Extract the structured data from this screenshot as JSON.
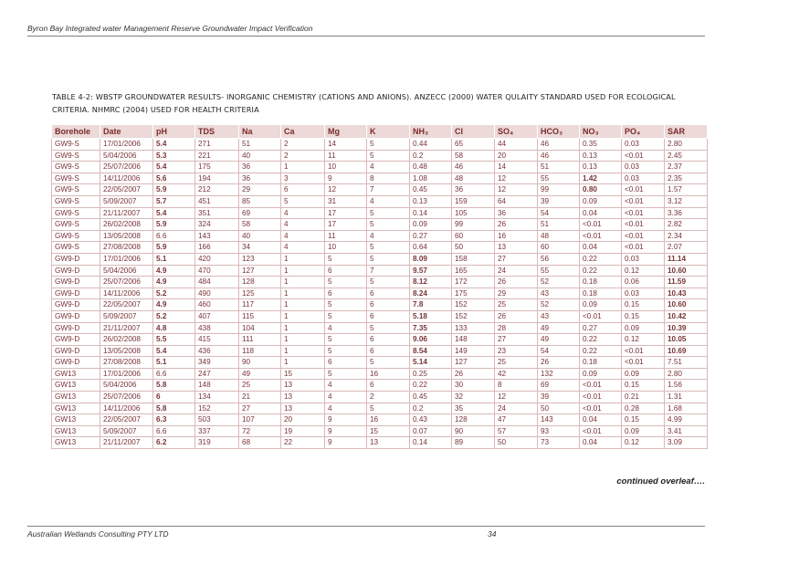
{
  "header": {
    "text": "Byron Bay Integrated water Management Reserve Groundwater Impact Verification"
  },
  "caption": {
    "text": "TABLE 4-2: WBSTP GROUNDWATER RESULTS- INORGANIC CHEMISTRY (CATIONS AND ANIONS).  ANZECC (2000) WATER QULAITY STANDARD USED FOR ECOLOGICAL CRITERIA.  NHMRC (2004) USED FOR HEALTH CRITERIA"
  },
  "table": {
    "headers": [
      "Borehole",
      "Date",
      "pH",
      "TDS",
      "Na",
      "Ca",
      "Mg",
      "K",
      "NH₃",
      "Cl",
      "SO₄",
      "HCO₃",
      "NO₃",
      "PO₄",
      "SAR"
    ],
    "rows": [
      [
        "GW9-S",
        "17/01/2006",
        "5.4",
        "271",
        "51",
        "2",
        "14",
        "5",
        "0.44",
        "65",
        "44",
        "46",
        "0.35",
        "0.03",
        "2.80"
      ],
      [
        "GW9-S",
        "5/04/2006",
        "5.3",
        "221",
        "40",
        "2",
        "11",
        "5",
        "0.2",
        "58",
        "20",
        "46",
        "0.13",
        "<0.01",
        "2.45"
      ],
      [
        "GW9-S",
        "25/07/2006",
        "5.4",
        "175",
        "36",
        "1",
        "10",
        "4",
        "0.48",
        "46",
        "14",
        "51",
        "0.13",
        "0.03",
        "2.37"
      ],
      [
        "GW9-S",
        "14/11/2006",
        "5.6",
        "194",
        "36",
        "3",
        "9",
        "8",
        "1.08",
        "48",
        "12",
        "55",
        "1.42",
        "0.03",
        "2.35"
      ],
      [
        "GW9-S",
        "22/05/2007",
        "5.9",
        "212",
        "29",
        "6",
        "12",
        "7",
        "0.45",
        "36",
        "12",
        "99",
        "0.80",
        "<0.01",
        "1.57"
      ],
      [
        "GW9-S",
        "5/09/2007",
        "5.7",
        "451",
        "85",
        "5",
        "31",
        "4",
        "0.13",
        "159",
        "64",
        "39",
        "0.09",
        "<0.01",
        "3.12"
      ],
      [
        "GW9-S",
        "21/11/2007",
        "5.4",
        "351",
        "69",
        "4",
        "17",
        "5",
        "0.14",
        "105",
        "36",
        "54",
        "0.04",
        "<0.01",
        "3.36"
      ],
      [
        "GW9-S",
        "26/02/2008",
        "5.9",
        "324",
        "58",
        "4",
        "17",
        "5",
        "0.09",
        "99",
        "26",
        "51",
        "<0.01",
        "<0.01",
        "2.82"
      ],
      [
        "GW9-S",
        "13/05/2008",
        "6.6",
        "143",
        "40",
        "4",
        "11",
        "4",
        "0.27",
        "60",
        "16",
        "48",
        "<0.01",
        "<0.01",
        "2.34"
      ],
      [
        "GW9-S",
        "27/08/2008",
        "5.9",
        "166",
        "34",
        "4",
        "10",
        "5",
        "0.64",
        "50",
        "13",
        "60",
        "0.04",
        "<0.01",
        "2.07"
      ],
      [
        "GW9-D",
        "17/01/2006",
        "5.1",
        "420",
        "123",
        "1",
        "5",
        "5",
        "8.09",
        "158",
        "27",
        "56",
        "0.22",
        "0.03",
        "11.14"
      ],
      [
        "GW9-D",
        "5/04/2006",
        "4.9",
        "470",
        "127",
        "1",
        "6",
        "7",
        "9.57",
        "165",
        "24",
        "55",
        "0.22",
        "0.12",
        "10.60"
      ],
      [
        "GW9-D",
        "25/07/2006",
        "4.9",
        "484",
        "128",
        "1",
        "5",
        "5",
        "8.12",
        "172",
        "26",
        "52",
        "0.18",
        "0.06",
        "11.59"
      ],
      [
        "GW9-D",
        "14/11/2006",
        "5.2",
        "490",
        "125",
        "1",
        "6",
        "6",
        "8.24",
        "175",
        "29",
        "43",
        "0.18",
        "0.03",
        "10.43"
      ],
      [
        "GW9-D",
        "22/05/2007",
        "4.9",
        "460",
        "117",
        "1",
        "5",
        "6",
        "7.8",
        "152",
        "25",
        "52",
        "0.09",
        "0.15",
        "10.60"
      ],
      [
        "GW9-D",
        "5/09/2007",
        "5.2",
        "407",
        "115",
        "1",
        "5",
        "6",
        "5.18",
        "152",
        "26",
        "43",
        "<0.01",
        "0.15",
        "10.42"
      ],
      [
        "GW9-D",
        "21/11/2007",
        "4.8",
        "438",
        "104",
        "1",
        "4",
        "5",
        "7.35",
        "133",
        "28",
        "49",
        "0.27",
        "0.09",
        "10.39"
      ],
      [
        "GW9-D",
        "26/02/2008",
        "5.5",
        "415",
        "111",
        "1",
        "5",
        "6",
        "9.06",
        "148",
        "27",
        "49",
        "0.22",
        "0.12",
        "10.05"
      ],
      [
        "GW9-D",
        "13/05/2008",
        "5.4",
        "436",
        "118",
        "1",
        "5",
        "6",
        "8.54",
        "149",
        "23",
        "54",
        "0.22",
        "<0.01",
        "10.69"
      ],
      [
        "GW9-D",
        "27/08/2008",
        "5.1",
        "349",
        "90",
        "1",
        "6",
        "5",
        "5.14",
        "127",
        "25",
        "26",
        "0.18",
        "<0.01",
        "7.51"
      ],
      [
        "GW13",
        "17/01/2006",
        "6.6",
        "247",
        "49",
        "15",
        "5",
        "16",
        "0.25",
        "26",
        "42",
        "132",
        "0.09",
        "0.09",
        "2.80"
      ],
      [
        "GW13",
        "5/04/2006",
        "5.8",
        "148",
        "25",
        "13",
        "4",
        "6",
        "0.22",
        "30",
        "8",
        "69",
        "<0.01",
        "0.15",
        "1.56"
      ],
      [
        "GW13",
        "25/07/2006",
        "6",
        "134",
        "21",
        "13",
        "4",
        "2",
        "0.45",
        "32",
        "12",
        "39",
        "<0.01",
        "0.21",
        "1.31"
      ],
      [
        "GW13",
        "14/11/2006",
        "5.8",
        "152",
        "27",
        "13",
        "4",
        "5",
        "0.2",
        "35",
        "24",
        "50",
        "<0.01",
        "0.28",
        "1.68"
      ],
      [
        "GW13",
        "22/05/2007",
        "6.3",
        "503",
        "107",
        "20",
        "9",
        "16",
        "0.43",
        "128",
        "47",
        "143",
        "0.04",
        "0.15",
        "4.99"
      ],
      [
        "GW13",
        "5/09/2007",
        "6.6",
        "337",
        "72",
        "19",
        "9",
        "15",
        "0.07",
        "90",
        "57",
        "93",
        "<0.01",
        "0.09",
        "3.41"
      ],
      [
        "GW13",
        "21/11/2007",
        "6.2",
        "319",
        "68",
        "22",
        "9",
        "13",
        "0.14",
        "89",
        "50",
        "73",
        "0.04",
        "0.12",
        "3.09"
      ]
    ],
    "bold_cells": [
      [
        0,
        2
      ],
      [
        1,
        2
      ],
      [
        2,
        2
      ],
      [
        3,
        2
      ],
      [
        4,
        2
      ],
      [
        5,
        2
      ],
      [
        6,
        2
      ],
      [
        7,
        2
      ],
      [
        9,
        2
      ],
      [
        3,
        12
      ],
      [
        4,
        12
      ],
      [
        10,
        2
      ],
      [
        11,
        2
      ],
      [
        12,
        2
      ],
      [
        13,
        2
      ],
      [
        14,
        2
      ],
      [
        15,
        2
      ],
      [
        16,
        2
      ],
      [
        17,
        2
      ],
      [
        18,
        2
      ],
      [
        19,
        2
      ],
      [
        10,
        8
      ],
      [
        11,
        8
      ],
      [
        12,
        8
      ],
      [
        13,
        8
      ],
      [
        14,
        8
      ],
      [
        15,
        8
      ],
      [
        16,
        8
      ],
      [
        17,
        8
      ],
      [
        18,
        8
      ],
      [
        19,
        8
      ],
      [
        10,
        14
      ],
      [
        11,
        14
      ],
      [
        12,
        14
      ],
      [
        13,
        14
      ],
      [
        14,
        14
      ],
      [
        15,
        14
      ],
      [
        16,
        14
      ],
      [
        17,
        14
      ],
      [
        18,
        14
      ],
      [
        21,
        2
      ],
      [
        22,
        2
      ],
      [
        23,
        2
      ],
      [
        24,
        2
      ],
      [
        26,
        2
      ]
    ]
  },
  "continued": {
    "text": "continued overleaf…."
  },
  "footer": {
    "left": "Australian Wetlands Consulting PTY LTD",
    "page": "34"
  }
}
